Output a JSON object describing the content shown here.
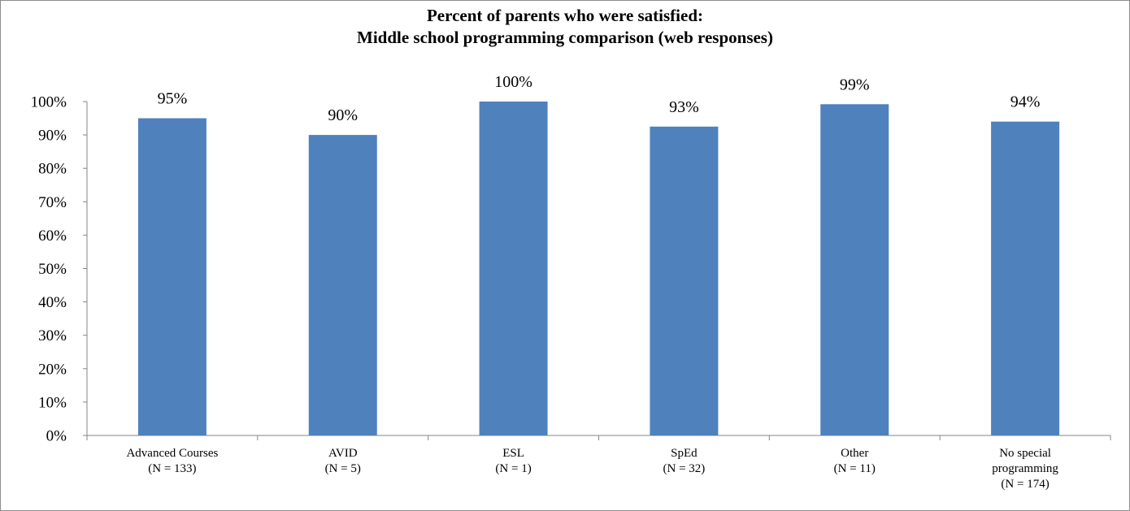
{
  "chart_data": {
    "type": "bar",
    "title": [
      "Percent of parents who were satisfied:",
      "Middle school programming comparison (web responses)"
    ],
    "xlabel": "",
    "ylabel": "",
    "ylim": [
      0,
      100
    ],
    "yticks": [
      "0%",
      "10%",
      "20%",
      "30%",
      "40%",
      "50%",
      "60%",
      "70%",
      "80%",
      "90%",
      "100%"
    ],
    "categories": [
      [
        "Advanced Courses",
        "(N = 133)"
      ],
      [
        "AVID",
        "(N = 5)"
      ],
      [
        "ESL",
        "(N = 1)"
      ],
      [
        "SpEd",
        "(N = 32)"
      ],
      [
        "Other",
        "(N = 11)"
      ],
      [
        "No special",
        "programming",
        "(N = 174)"
      ]
    ],
    "values": [
      95,
      90,
      100,
      92.5,
      99.2,
      94
    ],
    "data_labels": [
      "95%",
      "90%",
      "100%",
      "93%",
      "99%",
      "94%"
    ],
    "bar_color": "#4f81bd",
    "grid": false,
    "legend": "none"
  }
}
